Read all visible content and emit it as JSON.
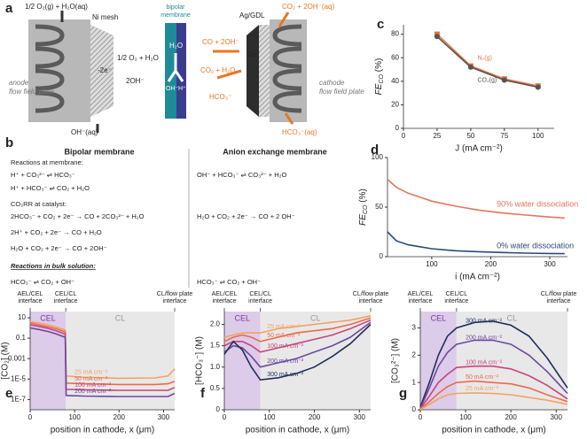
{
  "schematic": {
    "panel_label": "a",
    "anode_out": "1/2 O₂(g) + H₂O(aq)",
    "ni_mesh": "Ni mesh",
    "bpm": [
      "bipolar",
      "membrane"
    ],
    "ag_gdl": "Ag/GDL",
    "cathode_out": "CO₂ + 2OH⁻(aq)",
    "anode_plate": [
      "anode",
      "flow field plate"
    ],
    "cathode_plate": [
      "cathode",
      "flow field plate"
    ],
    "anode_product": "1/2 O₂ + H₂O",
    "anode_oh": "2OH⁻",
    "anode_e": "-2e⁻",
    "water": "H₂O",
    "oh": "OH⁻",
    "h": "H⁺",
    "co_out": "CO + 2OH⁻",
    "co2_in": "CO₂ + H₂O",
    "cathode_e": "2e⁻",
    "hco3": "HCO₃⁻",
    "anode_in": "OH⁻(aq)",
    "cathode_in": "HCO₃⁻(aq)"
  },
  "reactions": {
    "panel_label": "b",
    "bipolar": {
      "title": "Bipolar membrane",
      "membrane_heading": "Reactions at membrane:",
      "membrane": [
        "H⁺ + CO₃²⁻ ⇌ HCO₃⁻",
        "H⁺ + HCO₃⁻ ⇌ CO₂ + H₂O"
      ],
      "catalyst_heading": "CO₂RR at catalyst:",
      "catalyst": [
        "2HCO₃⁻ + CO₂ + 2e⁻ → CO + 2CO₃²⁻ + H₂O",
        "2H⁺ + CO₂ + 2e⁻ → CO + H₂O",
        "H₂O + CO₂ + 2e⁻ → CO + 2OH⁻"
      ],
      "bulk_heading": "Reactions in bulk solution:",
      "bulk": [
        "HCO₃⁻ ⇌ CO₂ + OH⁻"
      ]
    },
    "aem": {
      "title": "Anion exchange membrane",
      "membrane": [
        "OH⁻ + HCO₃⁻ ⇌ CO₃²⁻ + H₂O"
      ],
      "catalyst": [
        "H₂O + CO₂ + 2e⁻ → CO + 2 OH⁻"
      ],
      "bulk": [
        "HCO₃⁻ ⇌ CO₂ + OH⁻"
      ]
    }
  },
  "chart_data": [
    {
      "type": "line",
      "panel_label": "c",
      "ylabel": "FE",
      "ylabel_sub": "CO",
      "ylabel_unit": " (%)",
      "xlabel": "J (mA cm⁻²)",
      "x": [
        25,
        50,
        75,
        100
      ],
      "xlim": [
        0,
        112
      ],
      "xticks": [
        0,
        25,
        50,
        75,
        100
      ],
      "ylim": [
        0,
        88
      ],
      "yticks": [
        0,
        20,
        40,
        60,
        80
      ],
      "markers": true,
      "series": [
        {
          "name": "N₂(g)",
          "color": "#e8743b",
          "marker": "square",
          "values": [
            80,
            53,
            42,
            36
          ]
        },
        {
          "name": "CO₂(g)",
          "color": "#555555",
          "marker": "circle",
          "values": [
            78,
            52,
            41,
            35
          ]
        }
      ]
    },
    {
      "type": "line",
      "panel_label": "d",
      "ylabel": "FE",
      "ylabel_sub": "CO",
      "ylabel_unit": " (%)",
      "xlabel": "i (mA cm⁻²)",
      "x": [
        25,
        40,
        60,
        80,
        100,
        140,
        180,
        220,
        260,
        300,
        325
      ],
      "xlim": [
        25,
        330
      ],
      "xticks": [
        100,
        200,
        300
      ],
      "ylim": [
        0,
        100
      ],
      "yticks": [
        0,
        50,
        100
      ],
      "series": [
        {
          "name": "90% water dissociation",
          "color": "#e0765a",
          "values": [
            78,
            70,
            64,
            60,
            56,
            51,
            47,
            44,
            42,
            40,
            39
          ]
        },
        {
          "name": "0% water dissociation",
          "color": "#2b4a78",
          "values": [
            25,
            16,
            12,
            10,
            8,
            6,
            5,
            4.2,
            3.6,
            3.2,
            3
          ]
        }
      ]
    },
    {
      "type": "line",
      "panel_label": "e",
      "ylabel": "[CO₂] (M)",
      "xlabel": "position in cathode, x (μm)",
      "log_y": true,
      "x": [
        0,
        20,
        40,
        60,
        79,
        81,
        120,
        200,
        280,
        310,
        325
      ],
      "xlim": [
        0,
        325
      ],
      "xticks": [
        0,
        100,
        200,
        300
      ],
      "ylim": [
        1e-08,
        40
      ],
      "yticks": [
        10,
        0.1,
        0.001,
        {
          "value": 1e-05,
          "label": "1E-5"
        },
        {
          "value": 1e-07,
          "label": "1E-7"
        }
      ],
      "regions": [
        {
          "name": "CEL",
          "range": [
            0,
            80
          ],
          "color": "#dccbe9"
        },
        {
          "name": "CL",
          "range": [
            80,
            325
          ],
          "color": "#e8e8e8"
        }
      ],
      "annotations": [
        {
          "lines": [
            "AEL/CEL",
            "interface"
          ],
          "x": 0
        },
        {
          "lines": [
            "CEL/CL",
            "interface"
          ],
          "x": 80
        },
        {
          "lines": [
            "CL/flow plate",
            "interface"
          ],
          "x": 325
        }
      ],
      "series": [
        {
          "name": "25 mA cm⁻²",
          "color": "#f4a261",
          "values": [
            4,
            3,
            2,
            1.2,
            0.6,
            2e-05,
            1.5e-05,
            1.2e-05,
            1.3e-05,
            2e-05,
            0.0001
          ]
        },
        {
          "name": "50 mA cm⁻²",
          "color": "#ec6a4c",
          "values": [
            3,
            2,
            1.3,
            0.8,
            0.4,
            4e-06,
            3.5e-06,
            3e-06,
            3e-06,
            3.5e-06,
            6e-06
          ]
        },
        {
          "name": "100 mA cm⁻²",
          "color": "#c8457b",
          "values": [
            2,
            1.4,
            0.9,
            0.5,
            0.25,
            1e-06,
            9e-07,
            8e-07,
            8e-07,
            8e-07,
            1.5e-06
          ]
        },
        {
          "name": "200 mA cm⁻²",
          "color": "#6a4a9c",
          "values": [
            1,
            0.7,
            0.45,
            0.25,
            0.12,
            2.5e-07,
            2.2e-07,
            2e-07,
            2e-07,
            2e-07,
            4e-07
          ]
        }
      ]
    },
    {
      "type": "line",
      "panel_label": "f",
      "ylabel": "[HCO₃⁻] (M)",
      "xlabel": "position in cathode, x (μm)",
      "x": [
        0,
        20,
        40,
        60,
        80,
        120,
        160,
        200,
        240,
        280,
        325
      ],
      "xlim": [
        0,
        325
      ],
      "xticks": [
        0,
        100,
        200,
        300
      ],
      "ylim": [
        0,
        2.3
      ],
      "yticks": [
        0,
        0.5,
        {
          "value": 1,
          "label": "1.0"
        },
        1.5,
        {
          "value": 2,
          "label": "2.0"
        }
      ],
      "regions": [
        {
          "name": "CEL",
          "range": [
            0,
            80
          ],
          "color": "#dccbe9"
        },
        {
          "name": "CL",
          "range": [
            80,
            325
          ],
          "color": "#e8e8e8"
        }
      ],
      "annotations": [
        {
          "lines": [
            "AEL/CEL",
            "interface"
          ],
          "x": 0
        },
        {
          "lines": [
            "CEL/CL",
            "interface"
          ],
          "x": 80
        },
        {
          "lines": [
            "CL/flow plate",
            "interface"
          ],
          "x": 325
        }
      ],
      "series": [
        {
          "name": "25 mA cm⁻²",
          "color": "#f4a261",
          "values": [
            1.7,
            1.75,
            1.8,
            1.8,
            1.8,
            1.9,
            1.95,
            2.0,
            2.05,
            2.1,
            2.2
          ]
        },
        {
          "name": "50 mA cm⁻²",
          "color": "#ec6a4c",
          "values": [
            1.6,
            1.7,
            1.75,
            1.7,
            1.6,
            1.7,
            1.8,
            1.85,
            1.9,
            2.0,
            2.15
          ]
        },
        {
          "name": "100 mA cm⁻²",
          "color": "#c8457b",
          "values": [
            1.5,
            1.6,
            1.6,
            1.5,
            1.35,
            1.45,
            1.55,
            1.65,
            1.75,
            1.9,
            2.1
          ]
        },
        {
          "name": "200 mA cm⁻²",
          "color": "#6a4a9c",
          "values": [
            1.35,
            1.5,
            1.45,
            1.25,
            1.0,
            1.1,
            1.2,
            1.35,
            1.5,
            1.7,
            2.05
          ]
        },
        {
          "name": "300 mA cm⁻²",
          "color": "#1f2f5a",
          "values": [
            1.3,
            1.6,
            1.4,
            1.0,
            0.7,
            0.75,
            0.85,
            1.0,
            1.25,
            1.55,
            2.0
          ]
        }
      ]
    },
    {
      "type": "line",
      "panel_label": "g",
      "ylabel": "[CO₃²⁻] (M)",
      "xlabel": "position in cathode, x (μm)",
      "x": [
        0,
        20,
        40,
        60,
        80,
        120,
        160,
        200,
        240,
        280,
        325
      ],
      "xlim": [
        0,
        325
      ],
      "xticks": [
        0,
        100,
        200,
        300
      ],
      "ylim": [
        0,
        3.6
      ],
      "yticks": [
        0,
        1,
        2,
        3
      ],
      "regions": [
        {
          "name": "CEL",
          "range": [
            0,
            80
          ],
          "color": "#dccbe9"
        },
        {
          "name": "CL",
          "range": [
            80,
            325
          ],
          "color": "#e8e8e8"
        }
      ],
      "annotations": [
        {
          "lines": [
            "AEL/CEL",
            "interface"
          ],
          "x": 0
        },
        {
          "lines": [
            "CEL/CL",
            "interface"
          ],
          "x": 80
        },
        {
          "lines": [
            "CL/flow plate",
            "interface"
          ],
          "x": 325
        }
      ],
      "series": [
        {
          "name": "300 mA cm⁻²",
          "color": "#1f2f5a",
          "values": [
            0.1,
            1.0,
            2.0,
            2.7,
            3.0,
            3.2,
            3.25,
            3.1,
            2.7,
            1.9,
            0.8
          ]
        },
        {
          "name": "200 mA cm⁻²",
          "color": "#6a4a9c",
          "values": [
            0.05,
            0.8,
            1.6,
            2.1,
            2.4,
            2.55,
            2.55,
            2.4,
            2.0,
            1.4,
            0.6
          ]
        },
        {
          "name": "100 mA cm⁻²",
          "color": "#c8457b",
          "values": [
            0.03,
            0.5,
            1.0,
            1.3,
            1.55,
            1.6,
            1.6,
            1.5,
            1.25,
            0.9,
            0.4
          ]
        },
        {
          "name": "50 mA cm⁻²",
          "color": "#ec6a4c",
          "values": [
            0.02,
            0.3,
            0.6,
            0.85,
            1.0,
            1.05,
            1.0,
            0.95,
            0.8,
            0.55,
            0.3
          ]
        },
        {
          "name": "25 mA cm⁻²",
          "color": "#f4a261",
          "values": [
            0.01,
            0.2,
            0.4,
            0.55,
            0.6,
            0.62,
            0.6,
            0.55,
            0.45,
            0.35,
            0.2
          ]
        }
      ]
    }
  ]
}
